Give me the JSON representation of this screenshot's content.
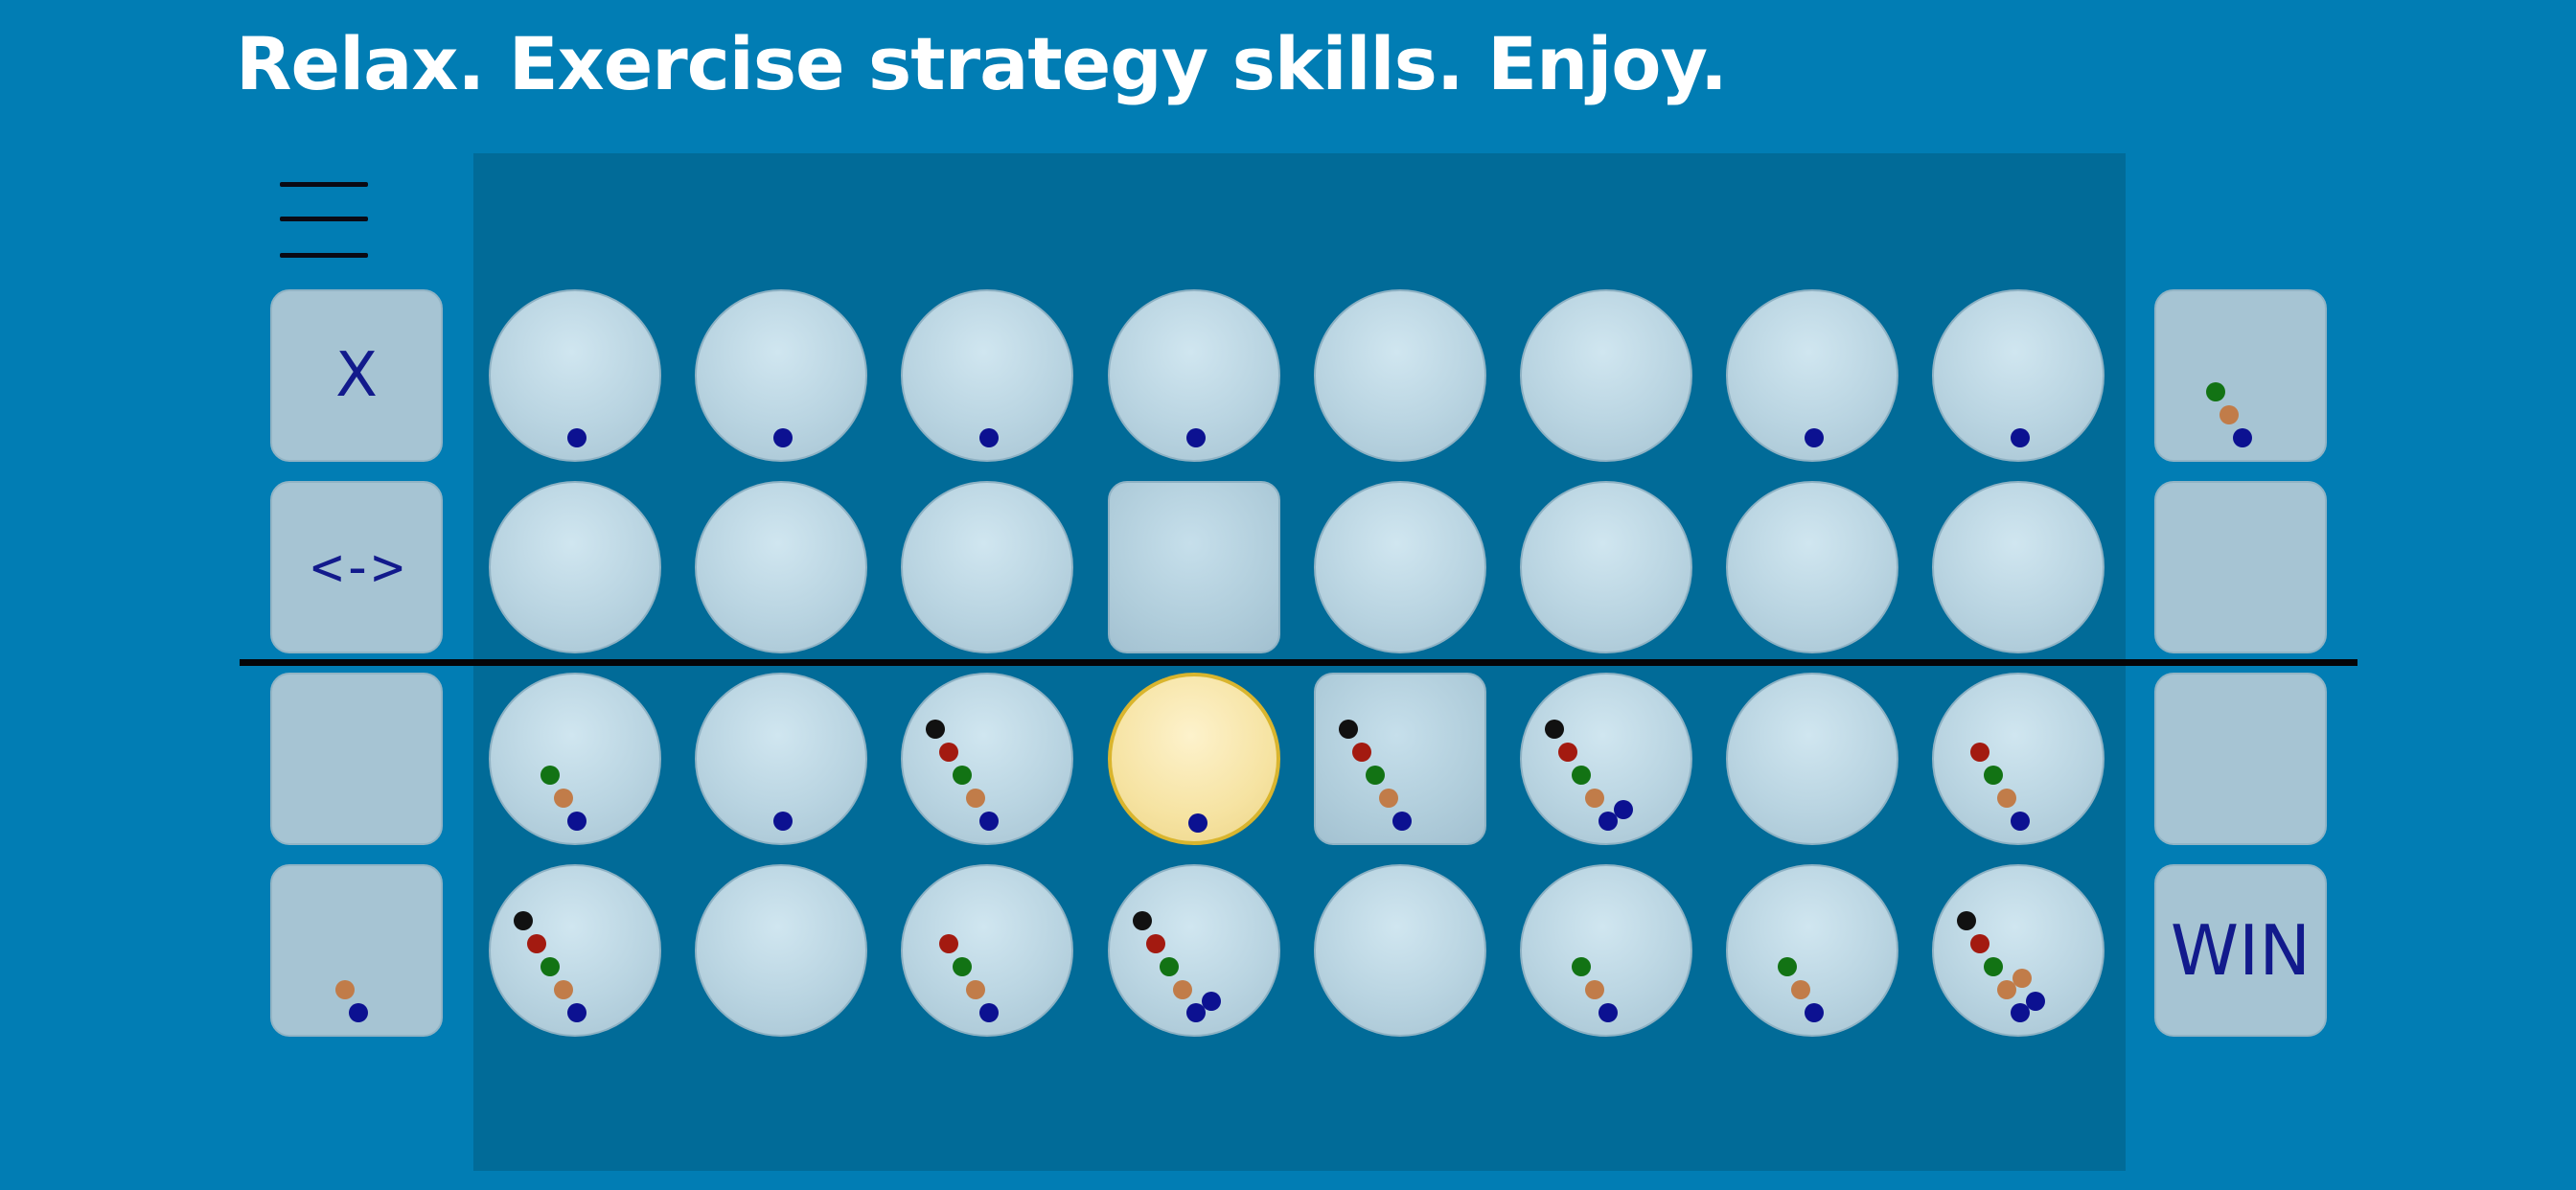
{
  "tagline": "Relax. Exercise strategy skills. Enjoy.",
  "menu_icon": "hamburger-menu-icon",
  "colors": {
    "background": "#017db4",
    "board": "#016b98",
    "cell": "#b9d4e1",
    "selected_cell": "#f6e3a2",
    "peg_black": "#111111",
    "peg_red": "#a31a10",
    "peg_green": "#127314",
    "peg_orange": "#c17c49",
    "peg_blue": "#0c1191"
  },
  "left_buttons": [
    {
      "label": "X",
      "name": "close-button"
    },
    {
      "label": "<->",
      "name": "swap-button"
    },
    {
      "label": "",
      "name": "left-slot-3"
    },
    {
      "label": "",
      "name": "left-slot-4"
    }
  ],
  "right_buttons": [
    {
      "label": "",
      "name": "right-slot-1"
    },
    {
      "label": "",
      "name": "right-slot-2"
    },
    {
      "label": "",
      "name": "right-slot-3"
    },
    {
      "label": "WIN",
      "name": "win-button"
    }
  ],
  "left_pegs": [
    [],
    [],
    [],
    [
      "orange",
      "blue"
    ]
  ],
  "right_pegs": [
    [
      "green",
      "orange",
      "blue"
    ],
    [],
    [],
    []
  ],
  "grid": [
    [
      {
        "shape": "circle",
        "pegs": [
          "blue"
        ]
      },
      {
        "shape": "circle",
        "pegs": [
          "blue"
        ]
      },
      {
        "shape": "circle",
        "pegs": [
          "blue"
        ]
      },
      {
        "shape": "circle",
        "pegs": [
          "blue"
        ]
      },
      {
        "shape": "circle",
        "pegs": []
      },
      {
        "shape": "circle",
        "pegs": []
      },
      {
        "shape": "circle",
        "pegs": [
          "blue"
        ]
      },
      {
        "shape": "circle",
        "pegs": [
          "blue"
        ]
      }
    ],
    [
      {
        "shape": "circle",
        "pegs": []
      },
      {
        "shape": "circle",
        "pegs": []
      },
      {
        "shape": "circle",
        "pegs": []
      },
      {
        "shape": "square",
        "pegs": []
      },
      {
        "shape": "circle",
        "pegs": []
      },
      {
        "shape": "circle",
        "pegs": []
      },
      {
        "shape": "circle",
        "pegs": []
      },
      {
        "shape": "circle",
        "pegs": []
      }
    ],
    [
      {
        "shape": "circle",
        "pegs": [
          "green",
          "orange",
          "blue"
        ]
      },
      {
        "shape": "circle",
        "pegs": [
          "blue"
        ]
      },
      {
        "shape": "circle",
        "pegs": [
          "black",
          "red",
          "green",
          "orange",
          "blue"
        ]
      },
      {
        "shape": "circle",
        "pegs": [
          "blue"
        ],
        "selected": true
      },
      {
        "shape": "square",
        "pegs": [
          "black",
          "red",
          "green",
          "orange",
          "blue"
        ]
      },
      {
        "shape": "circle",
        "pegs": [
          "black",
          "red",
          "green",
          "orange",
          "blue"
        ],
        "extra": [
          "blue"
        ]
      },
      {
        "shape": "circle",
        "pegs": []
      },
      {
        "shape": "circle",
        "pegs": [
          "red",
          "green",
          "orange",
          "blue"
        ]
      }
    ],
    [
      {
        "shape": "circle",
        "pegs": [
          "black",
          "red",
          "green",
          "orange",
          "blue"
        ]
      },
      {
        "shape": "circle",
        "pegs": []
      },
      {
        "shape": "circle",
        "pegs": [
          "red",
          "green",
          "orange",
          "blue"
        ]
      },
      {
        "shape": "circle",
        "pegs": [
          "black",
          "red",
          "green",
          "orange",
          "blue"
        ],
        "extra": [
          "blue"
        ]
      },
      {
        "shape": "circle",
        "pegs": []
      },
      {
        "shape": "circle",
        "pegs": [
          "green",
          "orange",
          "blue"
        ]
      },
      {
        "shape": "circle",
        "pegs": [
          "green",
          "orange",
          "blue"
        ]
      },
      {
        "shape": "circle",
        "pegs": [
          "black",
          "red",
          "green",
          "orange",
          "blue"
        ],
        "extra": [
          "orange",
          "blue"
        ]
      }
    ]
  ]
}
